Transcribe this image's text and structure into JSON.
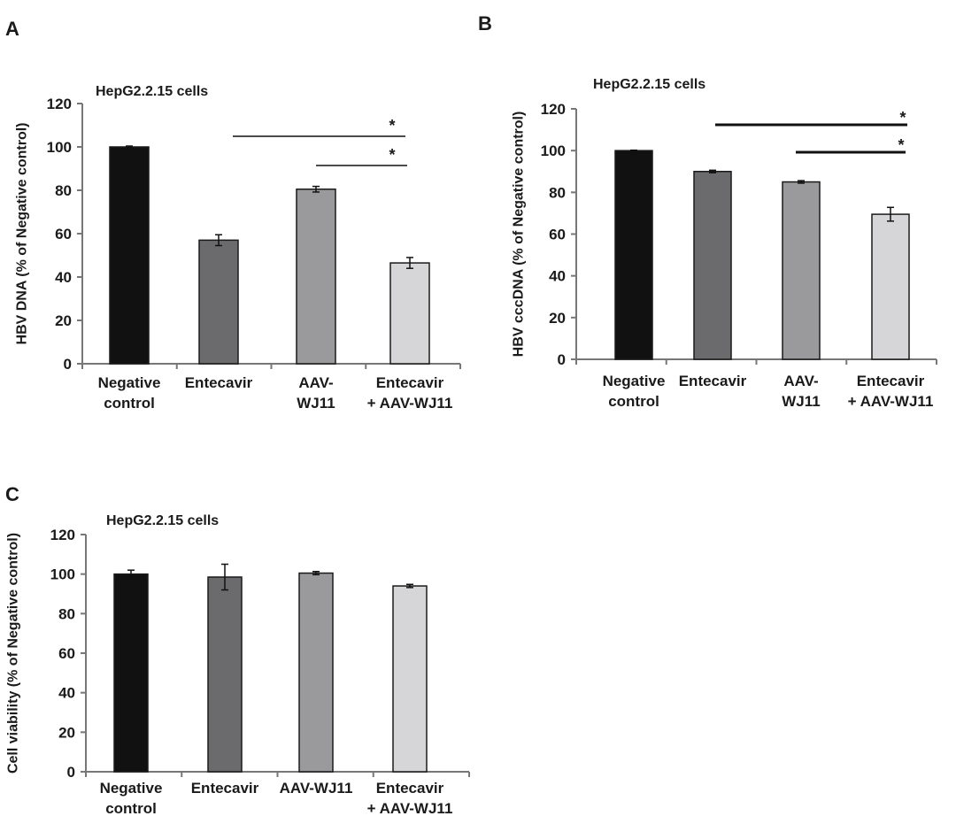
{
  "chart_data": [
    {
      "panel": "A",
      "type": "bar",
      "title": "HepG2.2.15 cells",
      "ylabel": "HBV DNA  (% of Negative control)",
      "xlabel": "",
      "ylim": [
        0,
        120
      ],
      "yticks": [
        0,
        20,
        40,
        60,
        80,
        100,
        120
      ],
      "categories": [
        [
          "Negative",
          "control"
        ],
        [
          "Entecavir"
        ],
        [
          "AAV-",
          "WJ11"
        ],
        [
          "Entecavir",
          "+ AAV-WJ11"
        ]
      ],
      "values": [
        100,
        57,
        80.5,
        46.5
      ],
      "errors": [
        0.4,
        2.5,
        1.3,
        2.5
      ],
      "colors": [
        "#111111",
        "#6b6b6d",
        "#9a9a9c",
        "#d6d6d8"
      ],
      "significance": [
        {
          "from": 1,
          "to": 3,
          "label": "*"
        },
        {
          "from": 2,
          "to": 3,
          "label": "*"
        }
      ]
    },
    {
      "panel": "B",
      "type": "bar",
      "title": "HepG2.2.15 cells",
      "ylabel": "HBV cccDNA (% of Negative control)",
      "xlabel": "",
      "ylim": [
        0,
        120
      ],
      "yticks": [
        0,
        20,
        40,
        60,
        80,
        100,
        120
      ],
      "categories": [
        [
          "Negative",
          "control"
        ],
        [
          "Entecavir"
        ],
        [
          "AAV-",
          "WJ11"
        ],
        [
          "Entecavir",
          "+ AAV-WJ11"
        ]
      ],
      "values": [
        100,
        90,
        85,
        69.5
      ],
      "errors": [
        0.2,
        0.6,
        0.6,
        3.3
      ],
      "colors": [
        "#111111",
        "#6b6b6d",
        "#9a9a9c",
        "#d6d6d8"
      ],
      "significance": [
        {
          "from": 1,
          "to": 3,
          "label": "*"
        },
        {
          "from": 2,
          "to": 3,
          "label": "*"
        }
      ]
    },
    {
      "panel": "C",
      "type": "bar",
      "title": "HepG2.2.15 cells",
      "ylabel": "Cell viability (% of Negative control)",
      "xlabel": "",
      "ylim": [
        0,
        120
      ],
      "yticks": [
        0,
        20,
        40,
        60,
        80,
        100,
        120
      ],
      "categories": [
        [
          "Negative",
          "control"
        ],
        [
          "Entecavir"
        ],
        [
          "AAV-WJ11"
        ],
        [
          "Entecavir",
          "+ AAV-WJ11"
        ]
      ],
      "values": [
        100,
        98.5,
        100.5,
        94
      ],
      "errors": [
        2,
        6.5,
        0.8,
        0.8
      ],
      "colors": [
        "#111111",
        "#6b6b6d",
        "#9a9a9c",
        "#d6d6d8"
      ],
      "significance": []
    }
  ]
}
